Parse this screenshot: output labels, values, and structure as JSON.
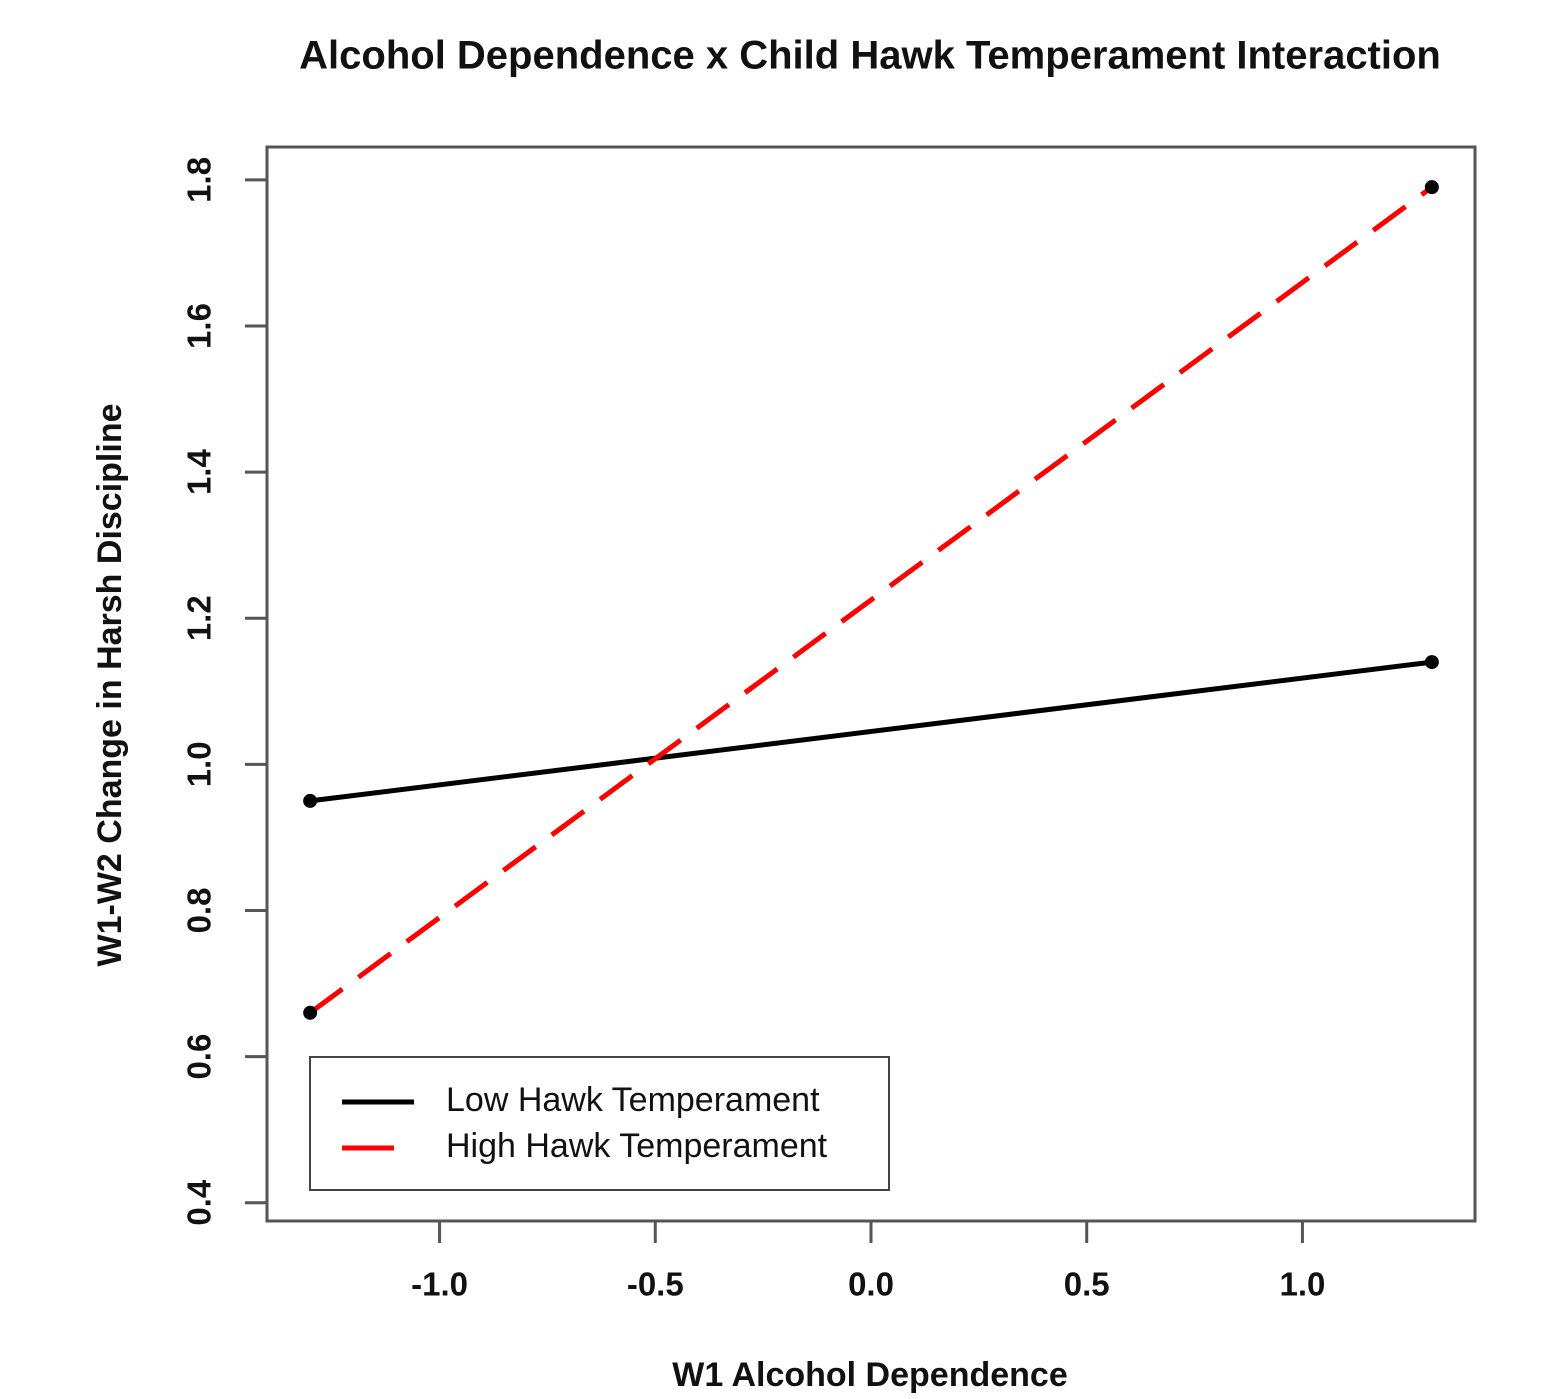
{
  "chart_data": {
    "type": "line",
    "title": "Alcohol Dependence x Child Hawk Temperament Interaction",
    "xlabel": "W1 Alcohol Dependence",
    "ylabel": "W1-W2 Change in Harsh Discipline",
    "x": [
      -1.3,
      1.3
    ],
    "series": [
      {
        "name": "Low Hawk Temperament",
        "color": "#000000",
        "dash": "solid",
        "values": [
          0.95,
          1.14
        ]
      },
      {
        "name": "High Hawk Temperament",
        "color": "#ff0000",
        "dash": "dashed",
        "values": [
          0.66,
          1.79
        ]
      }
    ],
    "xlim": [
      -1.4,
      1.4
    ],
    "ylim": [
      0.375,
      1.845
    ],
    "xticks": [
      {
        "value": -1.0,
        "label": "-1.0"
      },
      -0.5,
      {
        "value": 0.0,
        "label": "0.0"
      },
      0.5,
      {
        "value": 1.0,
        "label": "1.0"
      }
    ],
    "yticks": [
      0.4,
      0.6,
      0.8,
      {
        "value": 1.0,
        "label": "1.0"
      },
      1.2,
      1.4,
      1.6,
      1.8
    ],
    "grid": false,
    "legend": "bottom-left"
  }
}
